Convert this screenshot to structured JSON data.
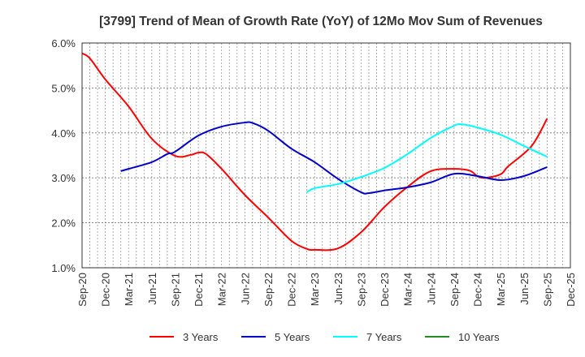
{
  "chart_data": {
    "type": "line",
    "title": "[3799]  Trend of Mean of Growth Rate (YoY) of 12Mo Mov Sum of Revenues",
    "xlabel": "",
    "ylabel": "",
    "ylim": [
      1.0,
      6.0
    ],
    "y_ticks": [
      "1.0%",
      "2.0%",
      "3.0%",
      "4.0%",
      "5.0%",
      "6.0%"
    ],
    "y_tick_values": [
      1.0,
      2.0,
      3.0,
      4.0,
      5.0,
      6.0
    ],
    "x_ticks": [
      "Sep-20",
      "Dec-20",
      "Mar-21",
      "Jun-21",
      "Sep-21",
      "Dec-21",
      "Mar-22",
      "Jun-22",
      "Sep-22",
      "Dec-22",
      "Mar-23",
      "Jun-23",
      "Sep-23",
      "Dec-23",
      "Mar-24",
      "Jun-24",
      "Sep-24",
      "Dec-24",
      "Mar-25",
      "Jun-25",
      "Sep-25",
      "Dec-25"
    ],
    "x_range_months": [
      0,
      63
    ],
    "x_unit": "months since Sep-20",
    "grid": true,
    "legend_position": "bottom",
    "series": [
      {
        "name": "3 Years",
        "color": "#ff0000",
        "points": [
          [
            0,
            5.77
          ],
          [
            1,
            5.66
          ],
          [
            3,
            5.19
          ],
          [
            6,
            4.59
          ],
          [
            9,
            3.87
          ],
          [
            12,
            3.49
          ],
          [
            14,
            3.51
          ],
          [
            15,
            3.56
          ],
          [
            16,
            3.53
          ],
          [
            18,
            3.2
          ],
          [
            21,
            2.62
          ],
          [
            24,
            2.12
          ],
          [
            27,
            1.6
          ],
          [
            29,
            1.42
          ],
          [
            30,
            1.4
          ],
          [
            33,
            1.43
          ],
          [
            36,
            1.79
          ],
          [
            39,
            2.35
          ],
          [
            42,
            2.8
          ],
          [
            45,
            3.15
          ],
          [
            48,
            3.2
          ],
          [
            50,
            3.16
          ],
          [
            51,
            3.04
          ],
          [
            52,
            3.0
          ],
          [
            54,
            3.08
          ],
          [
            55,
            3.26
          ],
          [
            58,
            3.71
          ],
          [
            60,
            4.32
          ]
        ]
      },
      {
        "name": "5 Years",
        "color": "#0000cc",
        "points": [
          [
            5,
            3.15
          ],
          [
            6,
            3.2
          ],
          [
            9,
            3.35
          ],
          [
            11,
            3.53
          ],
          [
            12,
            3.58
          ],
          [
            15,
            3.94
          ],
          [
            18,
            4.14
          ],
          [
            21,
            4.23
          ],
          [
            22,
            4.22
          ],
          [
            24,
            4.05
          ],
          [
            27,
            3.65
          ],
          [
            30,
            3.35
          ],
          [
            33,
            2.98
          ],
          [
            36,
            2.68
          ],
          [
            37,
            2.66
          ],
          [
            39,
            2.72
          ],
          [
            42,
            2.79
          ],
          [
            45,
            2.9
          ],
          [
            48,
            3.09
          ],
          [
            51,
            3.04
          ],
          [
            54,
            2.95
          ],
          [
            57,
            3.04
          ],
          [
            60,
            3.24
          ]
        ]
      },
      {
        "name": "7 Years",
        "color": "#00ffff",
        "points": [
          [
            29,
            2.68
          ],
          [
            30,
            2.77
          ],
          [
            33,
            2.86
          ],
          [
            36,
            3.02
          ],
          [
            39,
            3.22
          ],
          [
            42,
            3.53
          ],
          [
            45,
            3.89
          ],
          [
            48,
            4.16
          ],
          [
            49,
            4.19
          ],
          [
            51,
            4.12
          ],
          [
            54,
            3.96
          ],
          [
            57,
            3.71
          ],
          [
            60,
            3.47
          ]
        ]
      },
      {
        "name": "10 Years",
        "color": "#228b22",
        "points": []
      }
    ]
  }
}
